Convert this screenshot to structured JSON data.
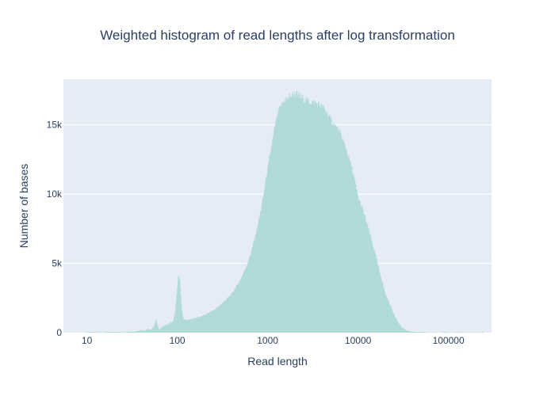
{
  "chart_data": {
    "type": "bar",
    "title": "Weighted histogram of read lengths after log transformation",
    "xlabel": "Read length",
    "ylabel": "Number of bases",
    "x_scale": "log",
    "xlim": [
      5.5,
      300000
    ],
    "ylim": [
      0,
      18300
    ],
    "x_ticks": [
      {
        "value": 10,
        "label": "10"
      },
      {
        "value": 100,
        "label": "100"
      },
      {
        "value": 1000,
        "label": "1000"
      },
      {
        "value": 10000,
        "label": "10000"
      },
      {
        "value": 100000,
        "label": "100000"
      }
    ],
    "y_ticks": [
      {
        "value": 0,
        "label": "0"
      },
      {
        "value": 5000,
        "label": "5k"
      },
      {
        "value": 10000,
        "label": "10k"
      },
      {
        "value": 15000,
        "label": "15k"
      }
    ],
    "grid": true,
    "legend": false,
    "plot_bgcolor": "#e5ecf6",
    "bar_color": "#b3dcd9",
    "bar_line_color": "#a4d3d0",
    "series": [
      {
        "x": [
          10,
          15,
          20,
          30,
          35,
          38,
          40,
          42,
          45,
          48,
          50,
          53,
          55,
          57,
          58,
          60,
          62,
          64,
          66,
          70,
          75,
          80,
          85,
          90,
          95,
          98,
          100,
          102,
          104,
          106,
          108,
          110,
          112,
          115,
          118,
          122,
          126,
          130,
          140,
          150,
          160,
          170,
          180,
          190,
          200,
          220,
          250,
          280,
          300,
          350,
          400,
          450,
          500,
          550,
          600,
          650,
          700,
          750,
          800,
          850,
          900,
          950,
          1000,
          1050,
          1100,
          1150,
          1200,
          1250,
          1300,
          1350,
          1400,
          1450,
          1500,
          1550,
          1600,
          1650,
          1700,
          1750,
          1800,
          1900,
          2000,
          2100,
          2200,
          2300,
          2400,
          2500,
          2600,
          2700,
          2800,
          3000,
          3200,
          3400,
          3600,
          3800,
          4000,
          4200,
          4500,
          4800,
          5000,
          5500,
          6000,
          6500,
          7000,
          7500,
          8000,
          8500,
          9000,
          9500,
          10000,
          11000,
          12000,
          13000,
          14000,
          15000,
          16000,
          17000,
          18000,
          19000,
          20000,
          22000,
          24000,
          26000,
          28000,
          30000,
          33000,
          36000,
          40000,
          45000,
          50000,
          55000,
          60000,
          70000,
          80000,
          100000,
          150000,
          250000
        ],
        "y": [
          20,
          20,
          30,
          40,
          80,
          120,
          160,
          140,
          150,
          250,
          180,
          300,
          400,
          700,
          900,
          700,
          280,
          200,
          350,
          450,
          550,
          600,
          700,
          800,
          1500,
          2500,
          3200,
          3700,
          4200,
          4000,
          3300,
          2500,
          1700,
          1200,
          950,
          900,
          900,
          900,
          950,
          1000,
          1050,
          1100,
          1150,
          1200,
          1250,
          1400,
          1600,
          1800,
          2000,
          2400,
          2800,
          3300,
          3800,
          4400,
          5000,
          5700,
          6500,
          7300,
          8100,
          9000,
          9900,
          10900,
          11800,
          12600,
          13400,
          14100,
          14800,
          15400,
          15800,
          16100,
          16300,
          16500,
          16700,
          16800,
          16850,
          16900,
          16950,
          17050,
          17100,
          17200,
          17250,
          17200,
          17100,
          17000,
          16950,
          16900,
          16800,
          16750,
          16700,
          16650,
          16600,
          16550,
          16500,
          16400,
          16300,
          16200,
          15900,
          15600,
          15300,
          15000,
          14600,
          14200,
          13700,
          13100,
          12500,
          11900,
          11200,
          10500,
          9800,
          9100,
          8300,
          7500,
          6800,
          6000,
          5300,
          4600,
          4000,
          3400,
          2800,
          2200,
          1600,
          1100,
          700,
          400,
          200,
          100,
          50,
          30,
          20,
          10,
          5,
          5,
          5,
          5,
          5,
          5
        ]
      }
    ]
  }
}
